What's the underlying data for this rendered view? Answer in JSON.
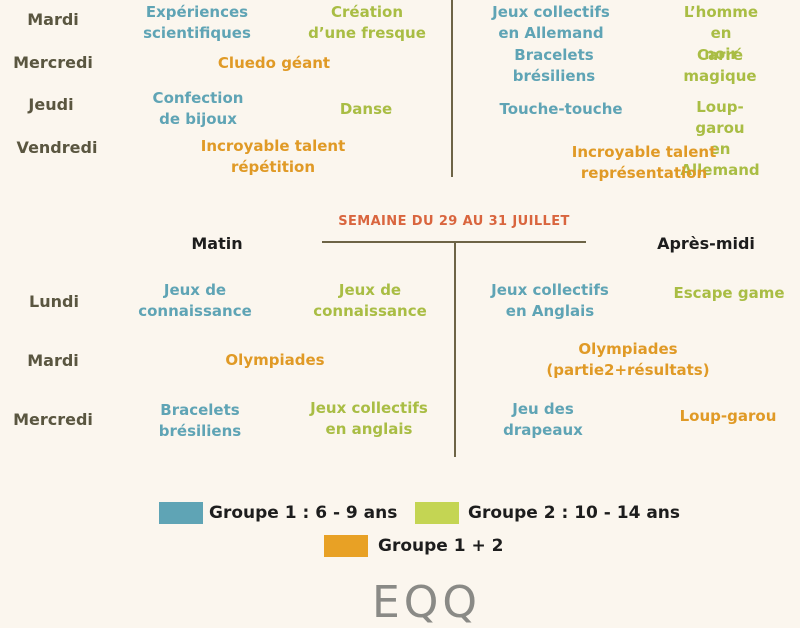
{
  "week1": {
    "days": [
      "Mardi",
      "Mercredi",
      "Jeudi",
      "Vendredi"
    ],
    "activities": {
      "mardi_am_g1": "Expériences\nscientifiques",
      "mardi_am_g2": "Création\nd’une fresque",
      "mardi_pm_g1": "Jeux collectifs\nen Allemand",
      "mardi_pm_g2": "L’homme en\nnoir",
      "mercredi_am_both": "Cluedo géant",
      "mercredi_pm_g1": "Bracelets\nbrésiliens",
      "mercredi_pm_g2": "Carré\nmagique",
      "jeudi_am_g1": "Confection\nde bijoux",
      "jeudi_am_g2": "Danse",
      "jeudi_pm_g1": "Touche-touche",
      "jeudi_pm_g2": "Loup-garou\nen Allemand",
      "vendredi_am_both": "Incroyable talent\nrépétition",
      "vendredi_pm_both": "Incroyable talent\nreprésentation"
    }
  },
  "week2": {
    "title": "SEMAINE DU 29 AU 31 JUILLET",
    "matin_label": "Matin",
    "apresmidi_label": "Après-midi",
    "days": [
      "Lundi",
      "Mardi",
      "Mercredi"
    ],
    "activities": {
      "lundi_am_g1": "Jeux de\nconnaissance",
      "lundi_am_g2": "Jeux de\nconnaissance",
      "lundi_pm_g1": "Jeux collectifs\nen Anglais",
      "lundi_pm_g2": "Escape game",
      "mardi_am_both": "Olympiades",
      "mardi_pm_both": "Olympiades\n(partie2+résultats)",
      "mercredi_am_g1": "Bracelets\nbrésiliens",
      "mercredi_am_g2": "Jeux collectifs\nen anglais",
      "mercredi_pm_g1": "Jeu des\ndrapeaux",
      "mercredi_pm_g2": "Loup-garou"
    }
  },
  "legend": {
    "group1": "Groupe 1 : 6 - 9 ans",
    "group2": "Groupe 2 : 10 - 14 ans",
    "both": "Groupe 1 + 2"
  },
  "colors": {
    "group1": "#5fa4b5",
    "group2": "#c4d553",
    "both": "#e8a125",
    "week_title": "#d9653e",
    "background": "#fbf6ee"
  },
  "footer_logo": "EQQ"
}
